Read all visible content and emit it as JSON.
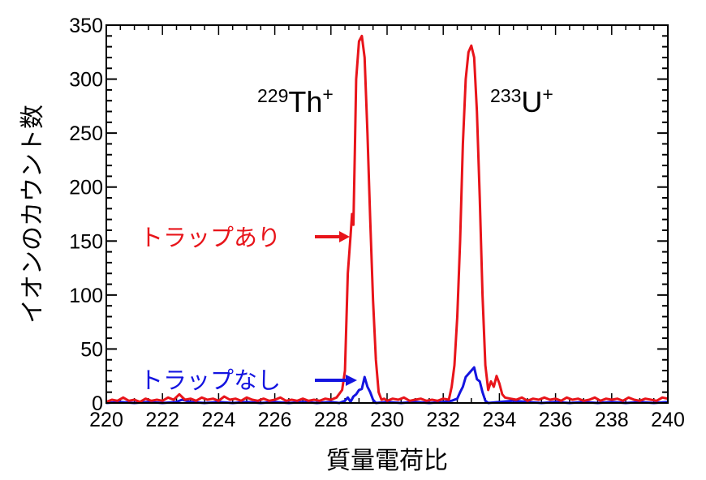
{
  "chart_data": {
    "type": "line",
    "title": "",
    "xlabel": "質量電荷比",
    "ylabel": "イオンのカウント数",
    "xlim": [
      220,
      240
    ],
    "ylim": [
      0,
      350
    ],
    "x_ticks": [
      "220",
      "222",
      "224",
      "226",
      "228",
      "230",
      "232",
      "234",
      "236",
      "238",
      "240"
    ],
    "y_ticks": [
      "0",
      "50",
      "100",
      "150",
      "200",
      "250",
      "300",
      "350"
    ],
    "grid": false,
    "annotations": [
      {
        "text_mass": "229",
        "text_element": "Th",
        "text_charge": "+",
        "x": 229.2,
        "y": 300
      },
      {
        "text_mass": "233",
        "text_element": "U",
        "text_charge": "+",
        "x": 233.0,
        "y": 300
      }
    ],
    "series": [
      {
        "name": "トラップあり",
        "color": "#e8141a",
        "x": [
          220.0,
          220.2,
          220.4,
          220.6,
          220.8,
          221.0,
          221.2,
          221.4,
          221.6,
          221.8,
          222.0,
          222.2,
          222.4,
          222.6,
          222.8,
          223.0,
          223.2,
          223.4,
          223.6,
          223.8,
          224.0,
          224.2,
          224.4,
          224.6,
          224.8,
          225.0,
          225.2,
          225.4,
          225.6,
          225.8,
          226.0,
          226.2,
          226.4,
          226.6,
          226.8,
          227.0,
          227.2,
          227.4,
          227.6,
          227.8,
          228.0,
          228.2,
          228.4,
          228.5,
          228.6,
          228.7,
          228.75,
          228.8,
          228.85,
          228.9,
          229.0,
          229.1,
          229.2,
          229.3,
          229.4,
          229.5,
          229.6,
          229.7,
          229.8,
          229.9,
          230.0,
          230.2,
          230.4,
          230.6,
          230.8,
          231.0,
          231.2,
          231.4,
          231.6,
          231.8,
          232.0,
          232.2,
          232.3,
          232.4,
          232.5,
          232.6,
          232.7,
          232.8,
          232.9,
          233.0,
          233.1,
          233.2,
          233.3,
          233.4,
          233.5,
          233.6,
          233.7,
          233.8,
          233.9,
          234.0,
          234.1,
          234.2,
          234.4,
          234.6,
          234.8,
          235.0,
          235.2,
          235.4,
          235.6,
          235.8,
          236.0,
          236.2,
          236.4,
          236.6,
          236.8,
          237.0,
          237.2,
          237.4,
          237.6,
          237.8,
          238.0,
          238.2,
          238.4,
          238.6,
          238.8,
          239.0,
          239.2,
          239.4,
          239.6,
          239.8,
          240.0
        ],
        "values": [
          1,
          3,
          2,
          5,
          2,
          3,
          1,
          4,
          2,
          3,
          2,
          5,
          3,
          8,
          3,
          4,
          2,
          5,
          3,
          4,
          2,
          6,
          3,
          4,
          2,
          5,
          3,
          2,
          4,
          2,
          3,
          5,
          2,
          3,
          2,
          4,
          2,
          3,
          2,
          4,
          3,
          5,
          12,
          30,
          120,
          155,
          175,
          165,
          230,
          300,
          335,
          340,
          320,
          250,
          170,
          95,
          40,
          10,
          3,
          4,
          2,
          4,
          3,
          5,
          2,
          3,
          4,
          2,
          3,
          2,
          4,
          3,
          15,
          35,
          80,
          150,
          240,
          300,
          325,
          331,
          320,
          270,
          190,
          100,
          35,
          12,
          20,
          15,
          25,
          18,
          8,
          5,
          4,
          3,
          5,
          2,
          4,
          3,
          5,
          3,
          4,
          2,
          5,
          3,
          4,
          2,
          3,
          5,
          2,
          4,
          3,
          4,
          2,
          5,
          3,
          2,
          4,
          3,
          2,
          5,
          4
        ]
      },
      {
        "name": "トラップなし",
        "color": "#1414e0",
        "x": [
          220.0,
          220.5,
          221.0,
          221.5,
          222.0,
          222.5,
          222.7,
          223.0,
          223.5,
          224.0,
          224.5,
          225.0,
          225.5,
          226.0,
          226.5,
          227.0,
          227.5,
          228.0,
          228.3,
          228.5,
          228.6,
          228.7,
          228.8,
          228.9,
          229.0,
          229.1,
          229.2,
          229.3,
          229.4,
          229.5,
          229.6,
          230.0,
          230.5,
          231.0,
          231.5,
          232.0,
          232.3,
          232.5,
          232.6,
          232.7,
          232.8,
          232.9,
          233.0,
          233.1,
          233.2,
          233.3,
          233.4,
          233.5,
          233.6,
          234.0,
          234.5,
          235.0,
          235.5,
          236.0,
          236.5,
          237.0,
          237.5,
          238.0,
          238.5,
          239.0,
          239.5,
          240.0
        ],
        "values": [
          0,
          1,
          0,
          1,
          0,
          1,
          3,
          1,
          0,
          1,
          0,
          1,
          0,
          1,
          0,
          1,
          0,
          1,
          0,
          2,
          5,
          1,
          6,
          8,
          12,
          13,
          24,
          15,
          10,
          3,
          0,
          1,
          0,
          1,
          0,
          1,
          2,
          4,
          10,
          15,
          24,
          27,
          30,
          33,
          22,
          20,
          10,
          2,
          0,
          1,
          2,
          1,
          0,
          1,
          0,
          1,
          0,
          1,
          0,
          1,
          0,
          1
        ]
      }
    ],
    "legend_inline": [
      {
        "label": "トラップあり",
        "color": "#e8141a",
        "arrow_target_x": 228.75,
        "arrow_target_y": 155
      },
      {
        "label": "トラップなし",
        "color": "#1414e0",
        "arrow_target_x": 228.95,
        "arrow_target_y": 22
      }
    ]
  }
}
